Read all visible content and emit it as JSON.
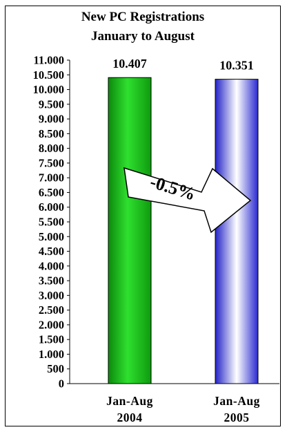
{
  "chart_data": {
    "type": "bar",
    "title": "New PC Registrations",
    "subtitle": "January to August",
    "categories": [
      "Jan-Aug 2004",
      "Jan-Aug 2005"
    ],
    "category_lines": [
      [
        "Jan-Aug",
        "2004"
      ],
      [
        "Jan-Aug",
        "2005"
      ]
    ],
    "values": [
      10407,
      10351
    ],
    "value_labels": [
      "10.407",
      "10.351"
    ],
    "ylim": [
      0,
      11000
    ],
    "y_ticks": [
      0,
      500,
      1000,
      1500,
      2000,
      2500,
      3000,
      3500,
      4000,
      4500,
      5000,
      5500,
      6000,
      6500,
      7000,
      7500,
      8000,
      8500,
      9000,
      9500,
      10000,
      10500,
      11000
    ],
    "y_tick_labels": [
      "0",
      "500",
      "1.000",
      "1.500",
      "2.000",
      "2.500",
      "3.000",
      "3.500",
      "4.000",
      "4.500",
      "5.000",
      "5.500",
      "6.000",
      "6.500",
      "7.000",
      "7.500",
      "8.000",
      "8.500",
      "9.000",
      "9.500",
      "10.000",
      "10.500",
      "11.000"
    ],
    "grid": false,
    "legend": "none",
    "colors": [
      "#1ec21e",
      "#3a3ae0"
    ],
    "annotation": {
      "text": "-0.5%",
      "shape": "arrow-right"
    }
  }
}
